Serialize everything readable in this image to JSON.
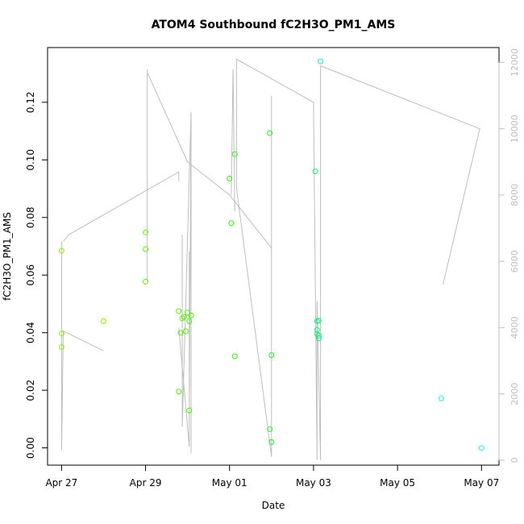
{
  "chart_data": {
    "type": "scatter",
    "title": "ATOM4 Southbound fC2H3O_PM1_AMS",
    "xlabel": "Date",
    "ylabel": "fC2H3O_PM1_AMS",
    "x_range": [
      "2016-04-26T16:00",
      "2016-05-07T10:00"
    ],
    "x_ticks": [
      {
        "date": "2016-04-27",
        "label": "Apr 27"
      },
      {
        "date": "2016-04-29",
        "label": "Apr 29"
      },
      {
        "date": "2016-05-01",
        "label": "May 01"
      },
      {
        "date": "2016-05-03",
        "label": "May 03"
      },
      {
        "date": "2016-05-05",
        "label": "May 05"
      },
      {
        "date": "2016-05-07",
        "label": "May 07"
      }
    ],
    "ylim": [
      -0.006,
      0.139
    ],
    "y_ticks": [
      0.0,
      0.02,
      0.04,
      0.06,
      0.08,
      0.1,
      0.12
    ],
    "y_tick_labels": [
      "0.00",
      "0.02",
      "0.04",
      "0.06",
      "0.08",
      "0.10",
      "0.12"
    ],
    "y2lim": [
      -150,
      12450
    ],
    "y2_ticks": [
      0,
      2000,
      4000,
      6000,
      8000,
      10000,
      12000
    ],
    "y2_tick_labels": [
      "0",
      "2000",
      "4000",
      "6000",
      "8000",
      "10000",
      "12000"
    ],
    "grid": false,
    "legend": "none",
    "colors": {
      "line": "#bebebe",
      "axis": "#000000",
      "secondary_axis": "#bebebe"
    },
    "series": [
      {
        "kind": "points",
        "axis": "left",
        "points": [
          {
            "x": "2016-04-27T00:00",
            "y": 0.0685,
            "color": "#88ee00"
          },
          {
            "x": "2016-04-27T00:00",
            "y": 0.0397,
            "color": "#88ee00"
          },
          {
            "x": "2016-04-27T00:00",
            "y": 0.035,
            "color": "#88ee00"
          },
          {
            "x": "2016-04-28T00:00",
            "y": 0.044,
            "color": "#7fee00"
          },
          {
            "x": "2016-04-29T00:00",
            "y": 0.0748,
            "color": "#66ee00"
          },
          {
            "x": "2016-04-29T00:00",
            "y": 0.069,
            "color": "#66ee00"
          },
          {
            "x": "2016-04-29T00:00",
            "y": 0.0577,
            "color": "#66ee00"
          },
          {
            "x": "2016-04-29T19:00",
            "y": 0.0475,
            "color": "#55ee00"
          },
          {
            "x": "2016-04-29T19:00",
            "y": 0.0195,
            "color": "#55ee00"
          },
          {
            "x": "2016-04-29T20:00",
            "y": 0.04,
            "color": "#55ee00"
          },
          {
            "x": "2016-04-29T21:00",
            "y": 0.045,
            "color": "#55ee00"
          },
          {
            "x": "2016-04-29T22:00",
            "y": 0.0455,
            "color": "#50ee00"
          },
          {
            "x": "2016-04-29T23:00",
            "y": 0.0405,
            "color": "#50ee00"
          },
          {
            "x": "2016-04-30T00:00",
            "y": 0.047,
            "color": "#4cee00"
          },
          {
            "x": "2016-04-30T01:00",
            "y": 0.044,
            "color": "#4cee00"
          },
          {
            "x": "2016-04-30T01:00",
            "y": 0.013,
            "color": "#4cee00"
          },
          {
            "x": "2016-04-30T02:00",
            "y": 0.046,
            "color": "#48ee00"
          },
          {
            "x": "2016-05-01T00:00",
            "y": 0.0935,
            "color": "#33ee11"
          },
          {
            "x": "2016-05-01T01:00",
            "y": 0.078,
            "color": "#33ee11"
          },
          {
            "x": "2016-05-01T03:00",
            "y": 0.102,
            "color": "#33ee11"
          },
          {
            "x": "2016-05-01T03:00",
            "y": 0.0318,
            "color": "#33ee11"
          },
          {
            "x": "2016-05-01T23:00",
            "y": 0.1093,
            "color": "#22ee22"
          },
          {
            "x": "2016-05-02T00:00",
            "y": 0.0322,
            "color": "#22ee22"
          },
          {
            "x": "2016-05-01T23:00",
            "y": 0.0065,
            "color": "#22ee22"
          },
          {
            "x": "2016-05-02T00:00",
            "y": 0.002,
            "color": "#22ee22"
          },
          {
            "x": "2016-05-03T01:00",
            "y": 0.096,
            "color": "#11ee77"
          },
          {
            "x": "2016-05-03T02:00",
            "y": 0.044,
            "color": "#11ee77"
          },
          {
            "x": "2016-05-03T03:00",
            "y": 0.0442,
            "color": "#11ee77"
          },
          {
            "x": "2016-05-03T02:00",
            "y": 0.041,
            "color": "#11ee77"
          },
          {
            "x": "2016-05-03T02:00",
            "y": 0.0395,
            "color": "#11ee77"
          },
          {
            "x": "2016-05-03T03:00",
            "y": 0.039,
            "color": "#11ee77"
          },
          {
            "x": "2016-05-03T03:00",
            "y": 0.038,
            "color": "#11ee77"
          },
          {
            "x": "2016-05-03T04:00",
            "y": 0.1342,
            "color": "#11eecc"
          },
          {
            "x": "2016-05-06T01:00",
            "y": 0.0172,
            "color": "#22eeee"
          },
          {
            "x": "2016-05-07T00:00",
            "y": 0.0,
            "color": "#22eeee"
          }
        ]
      },
      {
        "kind": "line",
        "axis": "right",
        "segments": [
          [
            {
              "x": "2016-04-27T00:00",
              "y": 6600
            },
            {
              "x": "2016-04-27T00:00",
              "y": 300
            },
            {
              "x": "2016-04-27T01:00",
              "y": 3900
            },
            {
              "x": "2016-04-28T00:00",
              "y": 3300
            }
          ],
          [
            {
              "x": "2016-04-27T01:00",
              "y": 6600
            },
            {
              "x": "2016-04-27T04:00",
              "y": 6800
            },
            {
              "x": "2016-04-29T19:00",
              "y": 8700
            },
            {
              "x": "2016-04-29T19:00",
              "y": 8400
            }
          ],
          [
            {
              "x": "2016-04-29T01:00",
              "y": 11800
            },
            {
              "x": "2016-04-29T01:00",
              "y": 5400
            },
            {
              "x": "2016-04-29T01:00",
              "y": 11700
            },
            {
              "x": "2016-04-30T00:00",
              "y": 9000
            },
            {
              "x": "2016-05-01T00:00",
              "y": 8000
            },
            {
              "x": "2016-05-02T00:00",
              "y": 6400
            },
            {
              "x": "2016-05-02T00:00",
              "y": 11000
            },
            {
              "x": "2016-05-02T00:00",
              "y": 100
            },
            {
              "x": "2016-05-01T04:00",
              "y": 8200
            },
            {
              "x": "2016-05-01T04:00",
              "y": 12100
            },
            {
              "x": "2016-05-03T00:00",
              "y": 10800
            },
            {
              "x": "2016-05-03T02:00",
              "y": 0
            },
            {
              "x": "2016-05-03T02:00",
              "y": 4800
            },
            {
              "x": "2016-05-03T04:00",
              "y": 0
            },
            {
              "x": "2016-05-03T04:00",
              "y": 11900
            },
            {
              "x": "2016-05-06T23:00",
              "y": 10000
            },
            {
              "x": "2016-05-06T02:00",
              "y": 5300
            }
          ],
          [
            {
              "x": "2016-05-01T01:00",
              "y": 8000
            },
            {
              "x": "2016-05-01T02:00",
              "y": 11800
            },
            {
              "x": "2016-05-01T03:00",
              "y": 7500
            }
          ],
          [
            {
              "x": "2016-04-29T19:00",
              "y": 4000
            },
            {
              "x": "2016-04-30T01:00",
              "y": 400
            },
            {
              "x": "2016-04-30T01:00",
              "y": 6300
            },
            {
              "x": "2016-04-30T01:00",
              "y": 1500
            },
            {
              "x": "2016-04-30T02:00",
              "y": 10200
            },
            {
              "x": "2016-04-30T02:00",
              "y": 200
            },
            {
              "x": "2016-04-30T02:00",
              "y": 10500
            },
            {
              "x": "2016-04-29T21:00",
              "y": 1000
            },
            {
              "x": "2016-04-29T21:00",
              "y": 6800
            }
          ]
        ]
      }
    ]
  }
}
